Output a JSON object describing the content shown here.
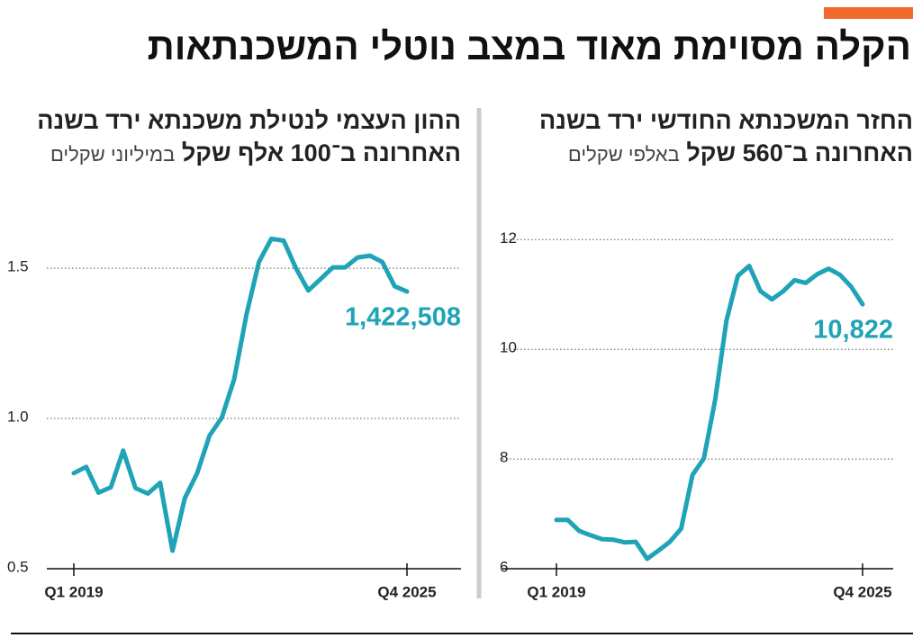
{
  "title": "הקלה מסוימת מאוד במצב נוטלי המשכנתאות",
  "chart_data": [
    {
      "type": "line",
      "title": [
        "ההון העצמי לנטילת משכנתא ירד בשנה",
        "האחרונה ב־100 אלף שקל"
      ],
      "subtitle": "במיליוני שקלים",
      "categories": [
        "Q1 2019",
        null,
        null,
        null,
        null,
        null,
        null,
        null,
        null,
        null,
        null,
        null,
        null,
        null,
        null,
        null,
        null,
        null,
        null,
        null,
        null,
        null,
        null,
        null,
        null,
        null,
        null,
        "Q4 2025"
      ],
      "values": [
        0.818,
        0.839,
        0.753,
        0.771,
        0.893,
        0.768,
        0.75,
        0.786,
        0.56,
        0.735,
        0.818,
        0.943,
        1.003,
        1.131,
        1.348,
        1.521,
        1.598,
        1.592,
        1.5,
        1.426,
        1.464,
        1.503,
        1.503,
        1.536,
        1.542,
        1.521,
        1.44,
        1.422508
      ],
      "value_labels": [
        null,
        null,
        null,
        null,
        null,
        null,
        null,
        null,
        null,
        null,
        null,
        null,
        null,
        null,
        null,
        null,
        null,
        null,
        null,
        null,
        null,
        null,
        null,
        null,
        null,
        null,
        null,
        "1,422,508"
      ],
      "color": "#1fa3b6",
      "ylim": [
        0.5,
        1.65
      ],
      "yticks": [
        0.5,
        {
          "value": 1,
          "label": "1.0"
        },
        1.5
      ],
      "grid": true
    },
    {
      "type": "line",
      "title": [
        "החזר המשכנתא החודשי ירד בשנה",
        "האחרונה ב־560 שקל"
      ],
      "subtitle": "באלפי שקלים",
      "categories": [
        "Q1 2019",
        null,
        null,
        null,
        null,
        null,
        null,
        null,
        null,
        null,
        null,
        null,
        null,
        null,
        null,
        null,
        null,
        null,
        null,
        null,
        null,
        null,
        null,
        null,
        null,
        null,
        null,
        "Q4 2025"
      ],
      "values": [
        6.89,
        6.89,
        6.69,
        6.61,
        6.54,
        6.53,
        6.48,
        6.49,
        6.18,
        6.33,
        6.49,
        6.73,
        7.71,
        8.01,
        9.08,
        10.53,
        11.34,
        11.52,
        11.06,
        10.91,
        11.06,
        11.26,
        11.21,
        11.37,
        11.47,
        11.36,
        11.14,
        10.822
      ],
      "value_labels": [
        null,
        null,
        null,
        null,
        null,
        null,
        null,
        null,
        null,
        null,
        null,
        null,
        null,
        null,
        null,
        null,
        null,
        null,
        null,
        null,
        null,
        null,
        null,
        null,
        null,
        null,
        null,
        "10,822"
      ],
      "color": "#1fa3b6",
      "ylim": [
        6,
        12.3
      ],
      "yticks": [
        6,
        8,
        10,
        12
      ],
      "grid": true
    }
  ]
}
